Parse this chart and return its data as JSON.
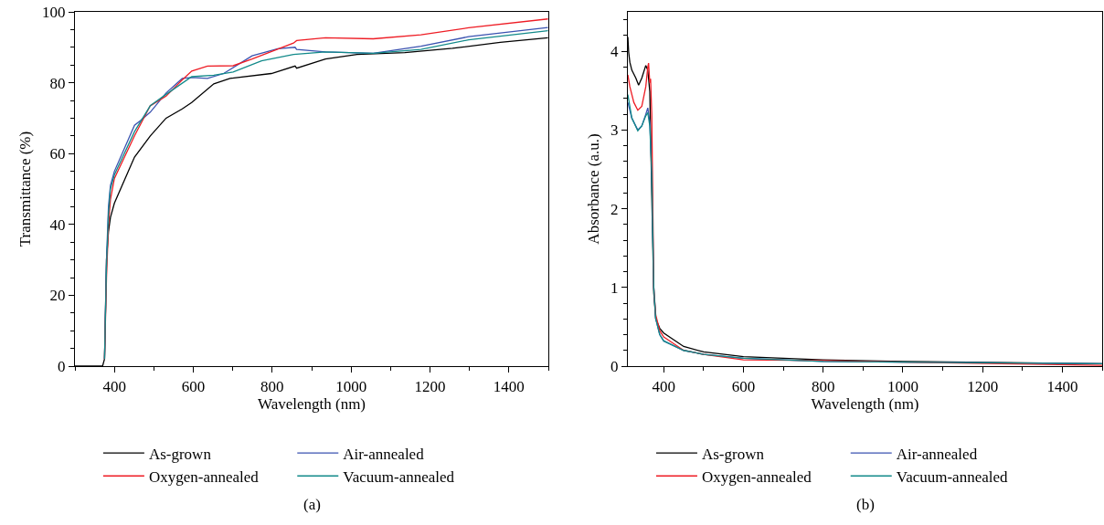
{
  "chart_data": [
    {
      "type": "line",
      "xlabel": "Wavelength (nm)",
      "ylabel": "Transmittance (%)",
      "annotations": [
        "(a)"
      ],
      "xlim": [
        300,
        1500
      ],
      "xticks": [
        400,
        600,
        800,
        1000,
        1200,
        1400
      ],
      "ylim": [
        0,
        100
      ],
      "yticks": [
        0,
        20,
        40,
        60,
        80,
        100
      ],
      "grid": false,
      "legend": "bottom",
      "marker": "none",
      "line_style": "solid",
      "series": [
        {
          "name": "As-grown",
          "color": "#000000",
          "x": [
            300,
            340,
            370,
            375,
            380,
            385,
            390,
            400,
            451,
            491,
            531,
            572,
            596,
            652,
            693,
            798,
            858,
            862,
            935,
            1015,
            1136,
            1257,
            1378,
            1499
          ],
          "values": [
            0,
            0,
            0,
            2,
            30,
            38,
            42,
            46,
            59,
            65,
            70,
            72.6,
            74.4,
            79.7,
            81.2,
            82.6,
            84.7,
            84.1,
            86.7,
            88,
            88.5,
            89.7,
            91.4,
            92.7
          ]
        },
        {
          "name": "Air-annealed",
          "color": "#3a52b0",
          "x": [
            375,
            380,
            385,
            390,
            400,
            451,
            467,
            491,
            531,
            572,
            596,
            636,
            677,
            749,
            814,
            858,
            862,
            935,
            1056,
            1177,
            1298,
            1499
          ],
          "values": [
            2,
            30,
            45,
            51,
            55,
            68,
            69.4,
            71.7,
            77.1,
            81.2,
            81.5,
            81.2,
            82.6,
            87.6,
            89.6,
            90,
            89.4,
            88.7,
            88.3,
            90.3,
            93,
            95.6
          ]
        },
        {
          "name": "Oxygen-annealed",
          "color": "#ee1c24",
          "x": [
            375,
            380,
            385,
            390,
            400,
            451,
            491,
            531,
            572,
            596,
            636,
            701,
            749,
            854,
            862,
            935,
            1056,
            1177,
            1298,
            1499
          ],
          "values": [
            2,
            25,
            40,
            47,
            53,
            65,
            73.5,
            76.2,
            80.8,
            83.3,
            84.7,
            84.8,
            86.7,
            91.2,
            91.9,
            92.7,
            92.4,
            93.5,
            95.5,
            98
          ]
        },
        {
          "name": "Vacuum-annealed",
          "color": "#128a8a",
          "x": [
            375,
            380,
            385,
            390,
            400,
            451,
            491,
            531,
            596,
            652,
            701,
            773,
            854,
            935,
            1056,
            1177,
            1298,
            1499
          ],
          "values": [
            2,
            28,
            43,
            50,
            54,
            66.2,
            73.5,
            76.7,
            81.7,
            82.1,
            83,
            86.2,
            88,
            88.7,
            88.3,
            89.4,
            92.1,
            94.7
          ]
        }
      ]
    },
    {
      "type": "line",
      "xlabel": "Wavelength (nm)",
      "ylabel": "Absorbance (a.u.)",
      "annotations": [
        "(b)"
      ],
      "xlim": [
        310,
        1500
      ],
      "xticks": [
        400,
        600,
        800,
        1000,
        1200,
        1400
      ],
      "ylim": [
        0,
        4.5
      ],
      "yticks": [
        0,
        1,
        2,
        3,
        4
      ],
      "grid": false,
      "legend": "bottom",
      "marker": "none",
      "line_style": "solid",
      "series": [
        {
          "name": "As-grown",
          "color": "#000000",
          "x": [
            310,
            312,
            315,
            320,
            330,
            337,
            345,
            355,
            360,
            365,
            370,
            375,
            380,
            390,
            400,
            450,
            500,
            600,
            800,
            1000,
            1500
          ],
          "values": [
            4.18,
            3.99,
            3.86,
            3.76,
            3.66,
            3.57,
            3.66,
            3.82,
            3.76,
            3.49,
            2.17,
            0.93,
            0.6,
            0.48,
            0.42,
            0.25,
            0.18,
            0.12,
            0.08,
            0.06,
            0.03
          ]
        },
        {
          "name": "Air-annealed",
          "color": "#3a52b0",
          "x": [
            310,
            320,
            335,
            345,
            355,
            360,
            365,
            370,
            375,
            380,
            390,
            400,
            450,
            500,
            600,
            800,
            1000,
            1500
          ],
          "values": [
            3.35,
            3.15,
            3,
            3.05,
            3.2,
            3.28,
            3.1,
            2.5,
            1,
            0.6,
            0.4,
            0.32,
            0.2,
            0.15,
            0.1,
            0.06,
            0.05,
            0.03
          ]
        },
        {
          "name": "Oxygen-annealed",
          "color": "#ee1c24",
          "x": [
            310,
            315,
            325,
            335,
            345,
            355,
            360,
            362,
            365,
            367,
            370,
            375,
            380,
            390,
            400,
            450,
            500,
            600,
            800,
            1000,
            1500
          ],
          "values": [
            3.7,
            3.55,
            3.35,
            3.25,
            3.3,
            3.55,
            3.8,
            3.85,
            3.6,
            3.65,
            3.2,
            1,
            0.65,
            0.45,
            0.37,
            0.2,
            0.15,
            0.08,
            0.07,
            0.05,
            0.01
          ]
        },
        {
          "name": "Vacuum-annealed",
          "color": "#128a8a",
          "x": [
            310,
            320,
            335,
            345,
            355,
            360,
            365,
            370,
            375,
            380,
            390,
            400,
            450,
            500,
            600,
            800,
            1000,
            1500
          ],
          "values": [
            3.45,
            3.15,
            2.99,
            3.05,
            3.18,
            3.22,
            3.05,
            2.45,
            1,
            0.6,
            0.4,
            0.32,
            0.2,
            0.15,
            0.1,
            0.06,
            0.05,
            0.03
          ]
        }
      ]
    }
  ]
}
